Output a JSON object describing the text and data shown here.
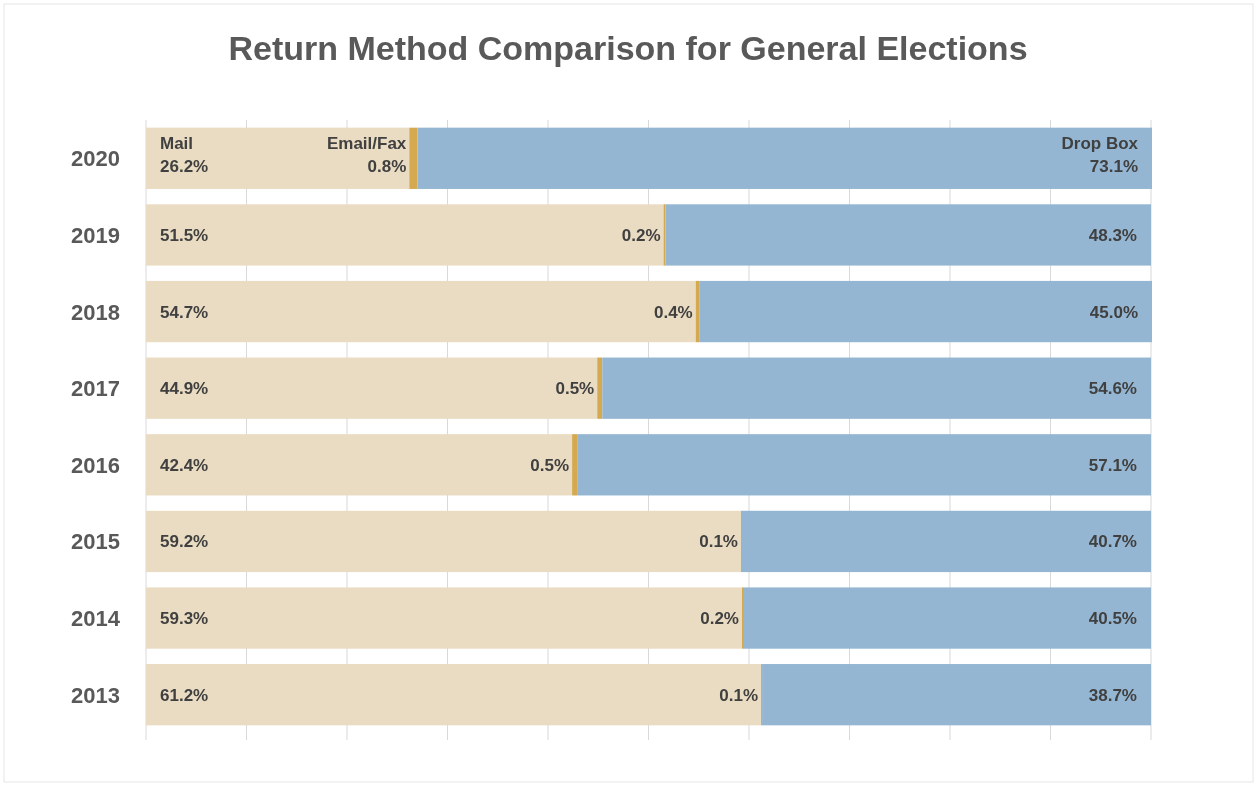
{
  "chart_data": {
    "type": "bar",
    "orientation": "horizontal",
    "stacked": true,
    "title": "Return Method Comparison for General Elections",
    "categories": [
      "2020",
      "2019",
      "2018",
      "2017",
      "2016",
      "2015",
      "2014",
      "2013"
    ],
    "series": [
      {
        "name": "Mail",
        "color": "#eadcc2",
        "values": [
          26.2,
          51.5,
          54.7,
          44.9,
          42.4,
          59.2,
          59.3,
          61.2
        ],
        "value_labels": [
          "26.2%",
          "51.5%",
          "54.7%",
          "44.9%",
          "42.4%",
          "59.2%",
          "59.3%",
          "61.2%"
        ]
      },
      {
        "name": "Email/Fax",
        "color": "#d4a94f",
        "values": [
          0.8,
          0.2,
          0.4,
          0.5,
          0.5,
          0.1,
          0.2,
          0.1
        ],
        "value_labels": [
          "0.8%",
          "0.2%",
          "0.4%",
          "0.5%",
          "0.5%",
          "0.1%",
          "0.2%",
          "0.1%"
        ]
      },
      {
        "name": "Drop Box",
        "color": "#94b6d2",
        "values": [
          73.1,
          48.3,
          45.0,
          54.6,
          57.1,
          40.7,
          40.5,
          38.7
        ],
        "value_labels": [
          "73.1%",
          "48.3%",
          "45.0%",
          "54.6%",
          "57.1%",
          "40.7%",
          "40.5%",
          "38.7%"
        ]
      }
    ],
    "xlim": [
      0,
      100.1
    ],
    "xticks": [
      {
        "value": 0,
        "label": null
      },
      {
        "value": 10,
        "label": null
      },
      {
        "value": 20,
        "label": null
      },
      {
        "value": 30,
        "label": null
      },
      {
        "value": 40,
        "label": null
      },
      {
        "value": 50,
        "label": null
      },
      {
        "value": 60,
        "label": null
      },
      {
        "value": 70,
        "label": null
      },
      {
        "value": 80,
        "label": null
      },
      {
        "value": 90,
        "label": null
      },
      {
        "value": 100,
        "label": null
      }
    ],
    "tick_labels": "y",
    "grid": "x",
    "legend": false
  }
}
